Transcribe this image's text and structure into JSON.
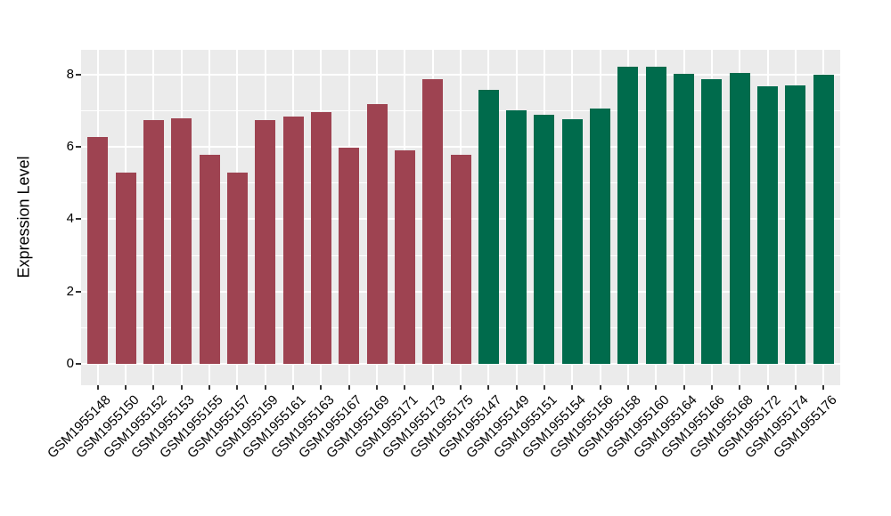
{
  "figure": {
    "background": "#ffffff",
    "panel_background": "#ebebeb",
    "grid_color": "#ffffff",
    "axis_text_color": "#000000",
    "tick_mark_color": "#333333"
  },
  "chart_data": {
    "type": "bar",
    "title": "",
    "xlabel": "",
    "ylabel": "Expression Level",
    "ylim": [
      0,
      8.7
    ],
    "yticks": [
      0,
      2,
      4,
      6,
      8
    ],
    "minor_gridlines": [
      1,
      3,
      5,
      7
    ],
    "grid": true,
    "legend_position": "none",
    "x_tick_rotation_deg": 45,
    "group_colors": {
      "maroon": "#9e4351",
      "green": "#006b4c"
    },
    "bars": [
      {
        "label": "GSM1955148",
        "value": 6.27,
        "group": "maroon"
      },
      {
        "label": "GSM1955150",
        "value": 5.28,
        "group": "maroon"
      },
      {
        "label": "GSM1955152",
        "value": 6.75,
        "group": "maroon"
      },
      {
        "label": "GSM1955153",
        "value": 6.8,
        "group": "maroon"
      },
      {
        "label": "GSM1955155",
        "value": 5.78,
        "group": "maroon"
      },
      {
        "label": "GSM1955157",
        "value": 5.3,
        "group": "maroon"
      },
      {
        "label": "GSM1955159",
        "value": 6.74,
        "group": "maroon"
      },
      {
        "label": "GSM1955161",
        "value": 6.84,
        "group": "maroon"
      },
      {
        "label": "GSM1955163",
        "value": 6.96,
        "group": "maroon"
      },
      {
        "label": "GSM1955167",
        "value": 5.97,
        "group": "maroon"
      },
      {
        "label": "GSM1955169",
        "value": 7.19,
        "group": "maroon"
      },
      {
        "label": "GSM1955171",
        "value": 5.9,
        "group": "maroon"
      },
      {
        "label": "GSM1955173",
        "value": 7.87,
        "group": "maroon"
      },
      {
        "label": "GSM1955175",
        "value": 5.78,
        "group": "maroon"
      },
      {
        "label": "GSM1955147",
        "value": 7.57,
        "group": "green"
      },
      {
        "label": "GSM1955149",
        "value": 7.02,
        "group": "green"
      },
      {
        "label": "GSM1955151",
        "value": 6.88,
        "group": "green"
      },
      {
        "label": "GSM1955154",
        "value": 6.77,
        "group": "green"
      },
      {
        "label": "GSM1955156",
        "value": 7.06,
        "group": "green"
      },
      {
        "label": "GSM1955158",
        "value": 8.22,
        "group": "green"
      },
      {
        "label": "GSM1955160",
        "value": 8.23,
        "group": "green"
      },
      {
        "label": "GSM1955164",
        "value": 8.02,
        "group": "green"
      },
      {
        "label": "GSM1955166",
        "value": 7.87,
        "group": "green"
      },
      {
        "label": "GSM1955168",
        "value": 8.04,
        "group": "green"
      },
      {
        "label": "GSM1955172",
        "value": 7.67,
        "group": "green"
      },
      {
        "label": "GSM1955174",
        "value": 7.7,
        "group": "green"
      },
      {
        "label": "GSM1955176",
        "value": 8.01,
        "group": "green"
      }
    ]
  }
}
